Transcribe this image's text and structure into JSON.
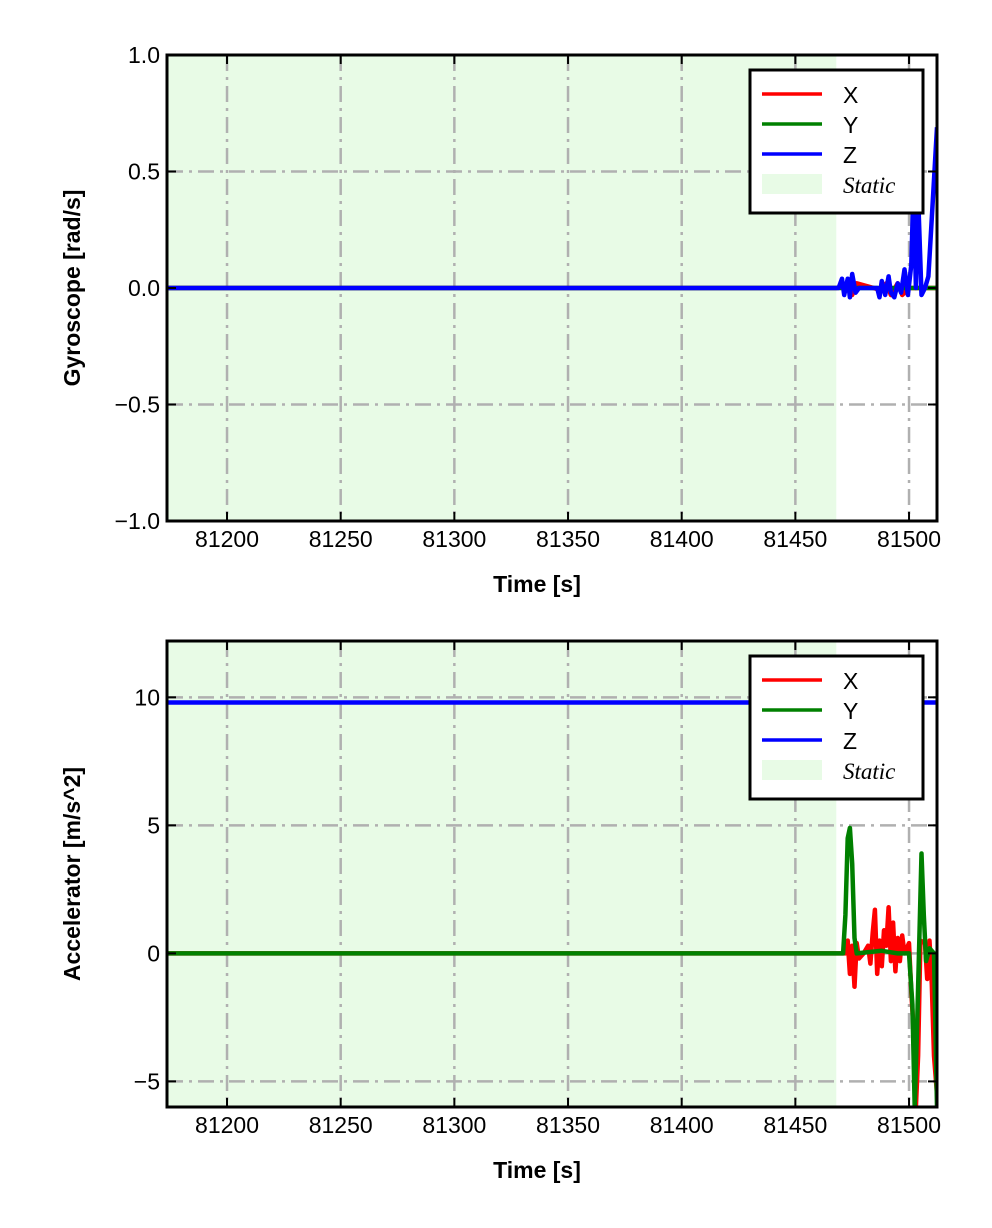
{
  "chart_data": [
    {
      "type": "line",
      "xlabel": "Time [s]",
      "ylabel": "Gyroscope [rad/s]",
      "xlim": [
        81173.6,
        81512.3
      ],
      "ylim": [
        -1.0,
        1.0
      ],
      "xticks": [
        81200,
        81250,
        81300,
        81350,
        81400,
        81450,
        81500
      ],
      "xtick_labels": [
        "81200",
        "81250",
        "81300",
        "81350",
        "81400",
        "81450",
        "81500"
      ],
      "yticks": [
        1.0,
        0.5,
        0.0,
        -0.5,
        -1.0
      ],
      "ytick_labels": [
        "1.0",
        "0.5",
        "0.0",
        "−0.5",
        "−1.0"
      ],
      "grid": true,
      "legend": "top-right",
      "static_region": {
        "name": "Static",
        "range": [
          81173.6,
          81468
        ],
        "color": "#e8fbe6"
      },
      "series": [
        {
          "name": "X",
          "color": "#ff0000",
          "points": [
            [
              81173.6,
              0
            ],
            [
              81468,
              0
            ],
            [
              81473,
              0.01
            ],
            [
              81475,
              -0.03
            ],
            [
              81477,
              0.02
            ],
            [
              81488,
              -0.01
            ],
            [
              81490,
              0.02
            ],
            [
              81492,
              -0.03
            ],
            [
              81495,
              0.02
            ],
            [
              81497,
              -0.03
            ],
            [
              81500,
              0
            ],
            [
              81512.3,
              0
            ]
          ]
        },
        {
          "name": "Y",
          "color": "#008000",
          "points": [
            [
              81173.6,
              0
            ],
            [
              81512.3,
              0
            ]
          ]
        },
        {
          "name": "Z",
          "color": "#0000ff",
          "points": [
            [
              81173.6,
              0
            ],
            [
              81469,
              0
            ],
            [
              81470.5,
              0.04
            ],
            [
              81471.5,
              -0.03
            ],
            [
              81473,
              0.04
            ],
            [
              81474,
              -0.04
            ],
            [
              81475,
              0.06
            ],
            [
              81476.5,
              -0.02
            ],
            [
              81478,
              0
            ],
            [
              81486,
              0
            ],
            [
              81487,
              -0.04
            ],
            [
              81488,
              0.03
            ],
            [
              81489.5,
              -0.03
            ],
            [
              81491,
              0.05
            ],
            [
              81492,
              -0.02
            ],
            [
              81493.5,
              -0.04
            ],
            [
              81495,
              0.02
            ],
            [
              81496.5,
              -0.02
            ],
            [
              81498,
              0.08
            ],
            [
              81499.5,
              -0.03
            ],
            [
              81501,
              0.1
            ],
            [
              81502,
              0.45
            ],
            [
              81503,
              0.0
            ],
            [
              81504,
              0.4
            ],
            [
              81505.5,
              -0.03
            ],
            [
              81507,
              0
            ],
            [
              81508.5,
              0.05
            ],
            [
              81510,
              0.3
            ],
            [
              81512.3,
              0.69
            ]
          ]
        }
      ]
    },
    {
      "type": "line",
      "xlabel": "Time [s]",
      "ylabel": "Accelerator [m/s^2]",
      "xlim": [
        81173.6,
        81512.3
      ],
      "ylim": [
        -6.0,
        12.2
      ],
      "xticks": [
        81200,
        81250,
        81300,
        81350,
        81400,
        81450,
        81500
      ],
      "xtick_labels": [
        "81200",
        "81250",
        "81300",
        "81350",
        "81400",
        "81450",
        "81500"
      ],
      "yticks": [
        10,
        5,
        0,
        -5
      ],
      "ytick_labels": [
        "10",
        "5",
        "0",
        "−5"
      ],
      "grid": true,
      "legend": "top-right",
      "static_region": {
        "name": "Static",
        "range": [
          81173.6,
          81468
        ],
        "color": "#e8fbe6"
      },
      "series": [
        {
          "name": "X",
          "color": "#ff0000",
          "points": [
            [
              81173.6,
              0
            ],
            [
              81472,
              0
            ],
            [
              81473,
              0.5
            ],
            [
              81474,
              -0.8
            ],
            [
              81475,
              0.3
            ],
            [
              81476,
              -1.3
            ],
            [
              81477,
              0.4
            ],
            [
              81478,
              -0.2
            ],
            [
              81480,
              0
            ],
            [
              81482,
              0.3
            ],
            [
              81483,
              -0.4
            ],
            [
              81484,
              0.8
            ],
            [
              81485,
              1.7
            ],
            [
              81486,
              -0.8
            ],
            [
              81487,
              0.5
            ],
            [
              81488,
              -0.5
            ],
            [
              81489,
              0.9
            ],
            [
              81490,
              0.3
            ],
            [
              81491,
              1.8
            ],
            [
              81492,
              -0.3
            ],
            [
              81493,
              1.2
            ],
            [
              81494,
              -0.7
            ],
            [
              81495,
              0.6
            ],
            [
              81496,
              -0.3
            ],
            [
              81497,
              0.7
            ],
            [
              81498,
              0
            ],
            [
              81500,
              0.4
            ],
            [
              81501,
              -1.5
            ],
            [
              81502,
              -3
            ],
            [
              81503,
              -6
            ],
            [
              81504,
              -4
            ],
            [
              81505,
              0.5
            ],
            [
              81507,
              0.4
            ],
            [
              81508,
              -1
            ],
            [
              81509,
              0.5
            ],
            [
              81510,
              -1.2
            ],
            [
              81511,
              -4
            ],
            [
              81512.3,
              -5.5
            ]
          ]
        },
        {
          "name": "Y",
          "color": "#008000",
          "points": [
            [
              81173.6,
              0
            ],
            [
              81471,
              0
            ],
            [
              81472,
              1.5
            ],
            [
              81473,
              4.5
            ],
            [
              81474,
              4.9
            ],
            [
              81475,
              3.5
            ],
            [
              81476,
              0.6
            ],
            [
              81477,
              0
            ],
            [
              81488,
              0.1
            ],
            [
              81495,
              0
            ],
            [
              81500,
              0
            ],
            [
              81501.5,
              -2
            ],
            [
              81502.5,
              -6
            ],
            [
              81503.5,
              -3
            ],
            [
              81504.5,
              0.5
            ],
            [
              81505.5,
              3.9
            ],
            [
              81506.5,
              1.5
            ],
            [
              81507.5,
              -0.3
            ],
            [
              81509,
              0.2
            ],
            [
              81511,
              0
            ],
            [
              81512.3,
              -6
            ]
          ]
        },
        {
          "name": "Z",
          "color": "#0000ff",
          "points": [
            [
              81173.6,
              9.8
            ],
            [
              81512.3,
              9.8
            ]
          ]
        }
      ]
    }
  ]
}
